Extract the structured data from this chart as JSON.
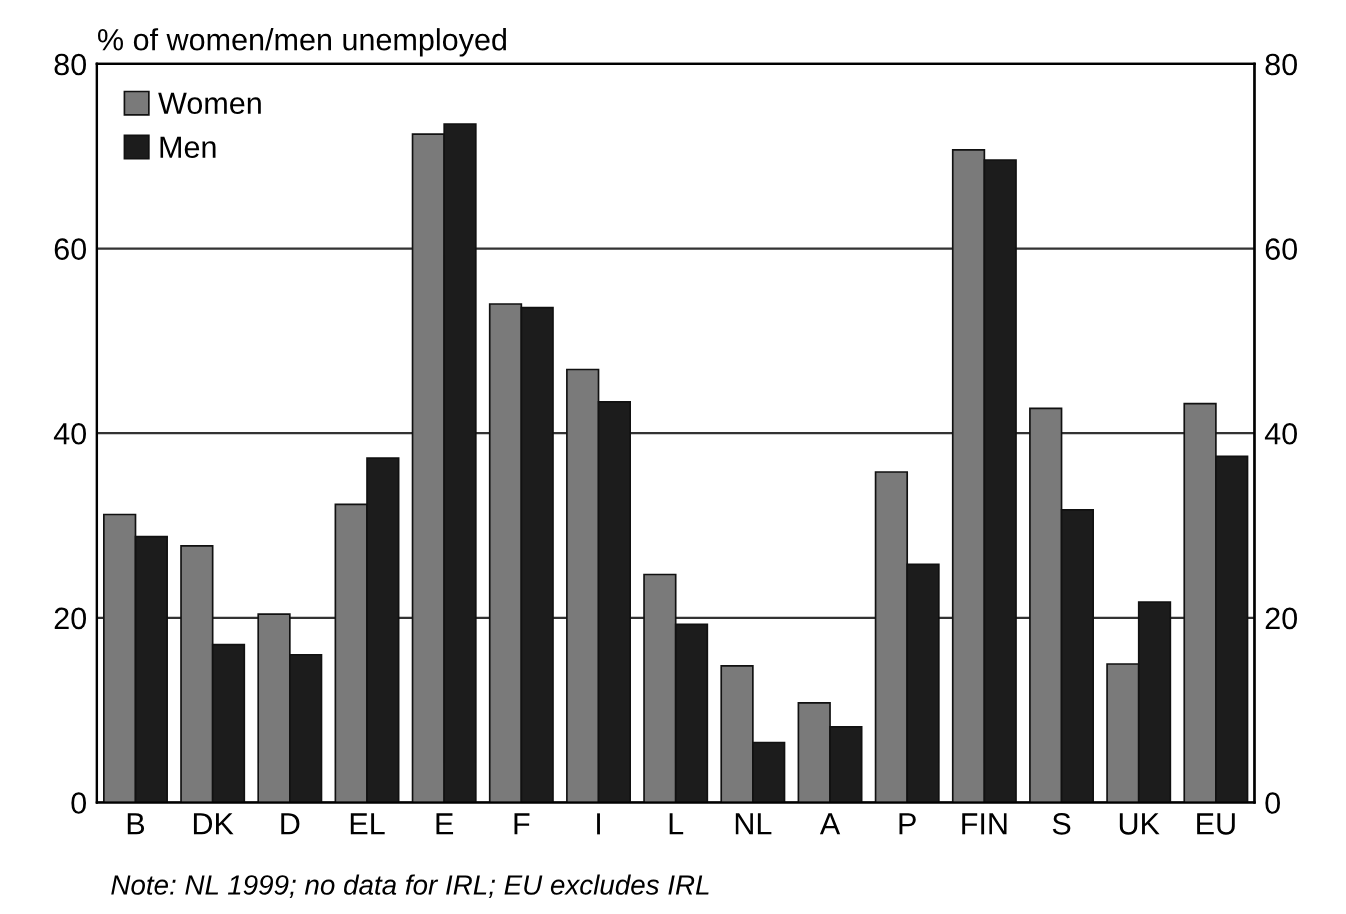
{
  "chart_data": {
    "type": "bar",
    "ylabel": "% of women/men unemployed",
    "categories": [
      "B",
      "DK",
      "D",
      "EL",
      "E",
      "F",
      "I",
      "L",
      "NL",
      "A",
      "P",
      "FIN",
      "S",
      "UK",
      "EU"
    ],
    "series": [
      {
        "name": "Women",
        "color": "#7a7a7a",
        "values": [
          31.2,
          27.8,
          20.4,
          32.3,
          72.4,
          54,
          46.9,
          24.7,
          14.8,
          10.8,
          35.8,
          70.7,
          42.7,
          15,
          43.2
        ]
      },
      {
        "name": "Men",
        "color": "#1c1c1c",
        "values": [
          28.8,
          17.1,
          16,
          37.3,
          73.5,
          53.6,
          43.4,
          19.3,
          6.5,
          8.2,
          25.8,
          69.6,
          31.7,
          21.7,
          37.5
        ]
      }
    ],
    "ylim": [
      0,
      80
    ],
    "yticks": [
      0,
      20,
      40,
      60,
      80
    ],
    "y2lim": [
      0,
      80
    ],
    "y2ticks": [
      0,
      20,
      40,
      60,
      80
    ],
    "grid": "y",
    "legend": "top left",
    "annotations": [
      "Note: NL 1999; no data for IRL; EU excludes IRL"
    ]
  }
}
